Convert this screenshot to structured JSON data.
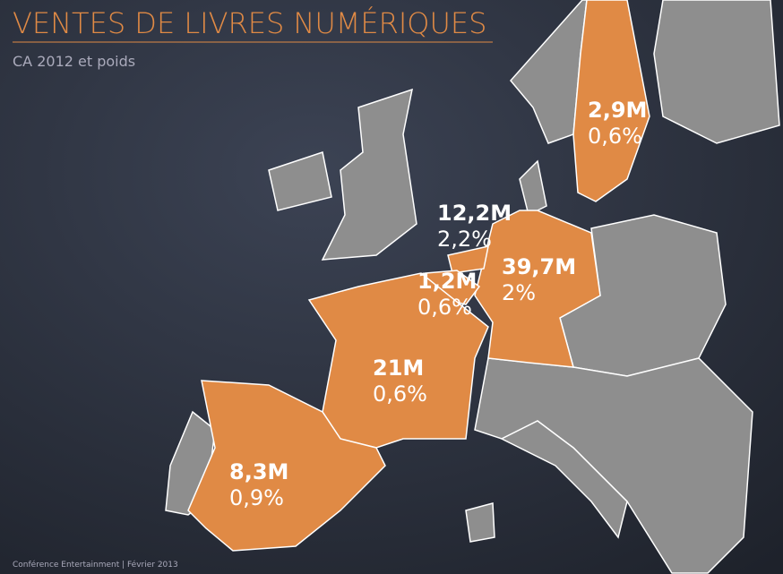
{
  "header": {
    "title": "VENTES DE LIVRES NUMÉRIQUES",
    "subtitle": "CA 2012 et poids"
  },
  "regions": [
    {
      "sales": "2,9M",
      "share": "0,6%"
    },
    {
      "sales": "12,2M",
      "share": "2,2%"
    },
    {
      "sales": "1,2M",
      "share": "0,6%"
    },
    {
      "sales": "39,7M",
      "share": "2%"
    },
    {
      "sales": "21M",
      "share": "0,6%"
    },
    {
      "sales": "8,3M",
      "share": "0,9%"
    }
  ],
  "footer": "Conférence Entertainment | Février 2013"
}
